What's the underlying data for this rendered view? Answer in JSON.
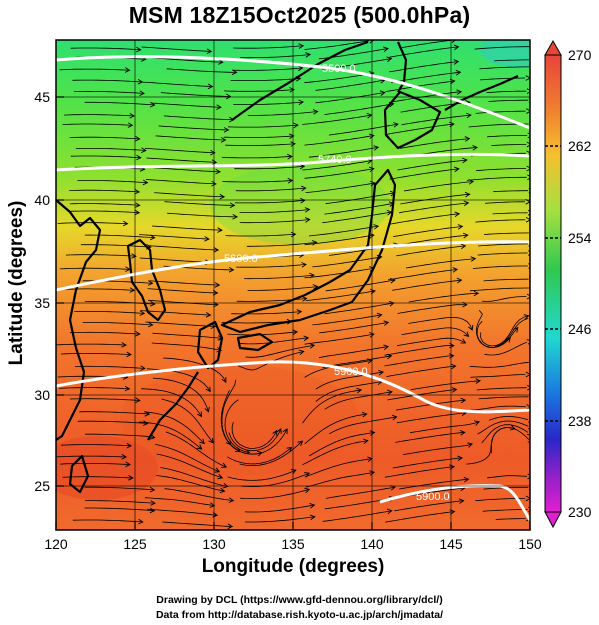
{
  "title": "MSM 18Z15Oct2025 (500.0hPa)",
  "x_axis": {
    "label": "Longitude (degrees)",
    "ticks": [
      "120",
      "125",
      "130",
      "135",
      "140",
      "145",
      "150"
    ]
  },
  "y_axis": {
    "label": "Latitude  (degrees)",
    "ticks": [
      "45",
      "40",
      "35",
      "30",
      "25"
    ]
  },
  "colorbar": {
    "ticks": [
      "270",
      "262",
      "254",
      "246",
      "238",
      "230"
    ]
  },
  "contours": [
    {
      "label": "5500.0"
    },
    {
      "label": "5740.0"
    },
    {
      "label": "5800.0"
    },
    {
      "label": "5900.0"
    },
    {
      "label": "5900.0"
    }
  ],
  "credits": [
    "Drawing by DCL (https://www.gfd-dennou.org/library/dcl/)",
    "Data from http://database.rish.kyoto-u.ac.jp/arch/jmadata/"
  ]
}
